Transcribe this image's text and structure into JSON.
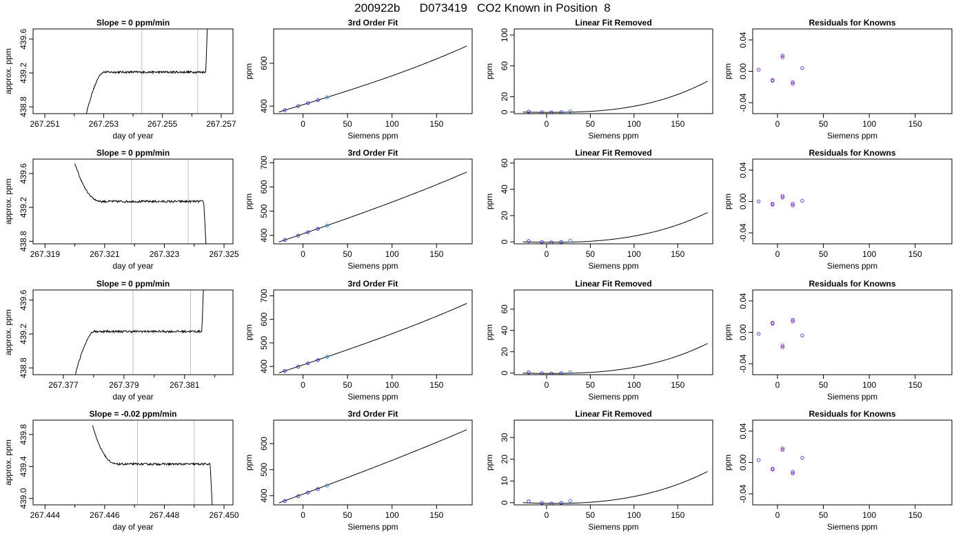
{
  "title": "200922b      D073419   CO2 Known in Position  8",
  "colors": {
    "trace": "#000000",
    "fit_curve": "#000000",
    "vertical_marker": "#bebebe",
    "point_outline": "#3333cc",
    "point_fill_alt": "#1e90ff",
    "highlight_point": "#ff8080",
    "residual_point": "#7a33cc"
  },
  "chart_data": [
    {
      "type": "line",
      "panel": "time-series-row-1",
      "title": "Slope =  0  ppm/min",
      "xlabel": "day of year",
      "ylabel": "approx. ppm",
      "xlim": [
        267.2506,
        267.2574
      ],
      "ylim": [
        438.72,
        439.72
      ],
      "xticks": [
        "267.251",
        "267.253",
        "267.255",
        "267.257"
      ],
      "xtick_values": [
        267.251,
        267.253,
        267.255,
        267.257
      ],
      "xminor": [
        267.252,
        267.254,
        267.256
      ],
      "yticks": [
        "438.8",
        "439.2",
        "439.6"
      ],
      "ytick_values": [
        438.8,
        439.2,
        439.6
      ],
      "vlines": [
        267.2543,
        267.2562
      ],
      "trace_profile": "rise-plateau-rise",
      "trace_start": 267.2524,
      "trace_end": 267.2566,
      "plateau": 439.21
    },
    {
      "type": "line",
      "panel": "time-series-row-2",
      "title": "Slope =  0  ppm/min",
      "xlabel": "day of year",
      "ylabel": "approx. ppm",
      "xlim": [
        267.3186,
        267.3253
      ],
      "ylim": [
        438.77,
        439.77
      ],
      "xticks": [
        "267.319",
        "267.321",
        "267.323",
        "267.325"
      ],
      "xtick_values": [
        267.319,
        267.321,
        267.323,
        267.325
      ],
      "xminor": [
        267.32,
        267.322,
        267.324
      ],
      "yticks": [
        "438.8",
        "439.2",
        "439.6"
      ],
      "ytick_values": [
        438.8,
        439.2,
        439.6
      ],
      "vlines": [
        267.3219,
        267.3238
      ],
      "trace_profile": "fall-plateau-fall",
      "trace_start": 267.32,
      "trace_end": 267.3245,
      "plateau": 439.27
    },
    {
      "type": "line",
      "panel": "time-series-row-3",
      "title": "Slope =  0  ppm/min",
      "xlabel": "day of year",
      "ylabel": "approx. ppm",
      "xlim": [
        267.376,
        267.3826
      ],
      "ylim": [
        438.72,
        439.72
      ],
      "xticks": [
        "267.377",
        "267.379",
        "267.381"
      ],
      "xtick_values": [
        267.377,
        267.379,
        267.381
      ],
      "xminor": [
        267.378,
        267.38,
        267.382
      ],
      "yticks": [
        "438.8",
        "439.2",
        "439.6"
      ],
      "ytick_values": [
        438.8,
        439.2,
        439.6
      ],
      "vlines": [
        267.3793,
        267.3812
      ],
      "trace_profile": "rise-plateau-rise",
      "trace_start": 267.3774,
      "trace_end": 267.3817,
      "plateau": 439.23
    },
    {
      "type": "line",
      "panel": "time-series-row-4",
      "title": "Slope =  -0.02  ppm/min",
      "xlabel": "day of year",
      "ylabel": "approx. ppm",
      "xlim": [
        267.4436,
        267.4503
      ],
      "ylim": [
        438.92,
        439.98
      ],
      "xticks": [
        "267.444",
        "267.446",
        "267.448",
        "267.450"
      ],
      "xtick_values": [
        267.444,
        267.446,
        267.448,
        267.45
      ],
      "xminor": [
        267.445,
        267.447,
        267.449
      ],
      "yticks": [
        "439.0",
        "439.4",
        "439.8"
      ],
      "ytick_values": [
        439.0,
        439.4,
        439.8
      ],
      "vlines": [
        267.4471,
        267.449
      ],
      "trace_profile": "fall-plateau-fall",
      "trace_start": 267.4456,
      "trace_end": 267.4497,
      "plateau": 439.43
    },
    {
      "type": "scatter",
      "panel": "fit-row-1",
      "title": "3rd Order Fit",
      "xlabel": "Siemens ppm",
      "ylabel": "ppm",
      "xlim": [
        -33,
        190
      ],
      "ylim": [
        365,
        760
      ],
      "xticks": [
        "0",
        "50",
        "100",
        "150"
      ],
      "xtick_values": [
        0,
        50,
        100,
        150
      ],
      "yticks": [
        "400",
        "600"
      ],
      "ytick_values": [
        400,
        600
      ],
      "x": [
        -20.5,
        -5.4,
        5.5,
        16.7,
        27
      ],
      "y": [
        381,
        400,
        414,
        428,
        441
      ],
      "curve": {
        "x0": -27,
        "x1": 184,
        "a": 4.55e-06,
        "b": 0.00038,
        "c": 1.264,
        "d": 406.8
      }
    },
    {
      "type": "scatter",
      "panel": "fit-row-2",
      "title": "3rd Order Fit",
      "xlabel": "Siemens ppm",
      "ylabel": "ppm",
      "xlim": [
        -33,
        190
      ],
      "ylim": [
        365,
        715
      ],
      "xticks": [
        "0",
        "50",
        "100",
        "150"
      ],
      "xtick_values": [
        0,
        50,
        100,
        150
      ],
      "yticks": [
        "400",
        "500",
        "600",
        "700"
      ],
      "ytick_values": [
        400,
        500,
        600,
        700
      ],
      "x": [
        -20.5,
        -5.4,
        5.5,
        16.7,
        27
      ],
      "y": [
        381,
        399,
        413,
        427,
        440
      ],
      "curve": {
        "x0": -27,
        "x1": 184,
        "a": 2.1e-06,
        "b": 0.00031,
        "c": 1.258,
        "d": 406.5
      }
    },
    {
      "type": "scatter",
      "panel": "fit-row-3",
      "title": "3rd Order Fit",
      "xlabel": "Siemens ppm",
      "ylabel": "ppm",
      "xlim": [
        -33,
        190
      ],
      "ylim": [
        365,
        725
      ],
      "xticks": [
        "0",
        "50",
        "100",
        "150"
      ],
      "xtick_values": [
        0,
        50,
        100,
        150
      ],
      "yticks": [
        "400",
        "500",
        "600",
        "700"
      ],
      "ytick_values": [
        400,
        500,
        600,
        700
      ],
      "x": [
        -20.5,
        -5.4,
        5.5,
        16.7,
        27
      ],
      "y": [
        381,
        399,
        413,
        427,
        441
      ],
      "curve": {
        "x0": -27,
        "x1": 184,
        "a": 2.8e-06,
        "b": 0.00034,
        "c": 1.262,
        "d": 406.7
      }
    },
    {
      "type": "scatter",
      "panel": "fit-row-4",
      "title": "3rd Order Fit",
      "xlabel": "Siemens ppm",
      "ylabel": "ppm",
      "xlim": [
        -33,
        190
      ],
      "ylim": [
        365,
        690
      ],
      "xticks": [
        "0",
        "50",
        "100",
        "150"
      ],
      "xtick_values": [
        0,
        50,
        100,
        150
      ],
      "yticks": [
        "400",
        "500",
        "600"
      ],
      "ytick_values": [
        400,
        500,
        600
      ],
      "x": [
        -20.5,
        -5.4,
        5.5,
        16.7,
        27
      ],
      "y": [
        380,
        398,
        412,
        426,
        439
      ],
      "curve": {
        "x0": -27,
        "x1": 184,
        "a": 1.1e-06,
        "b": 0.00026,
        "c": 1.258,
        "d": 406.3
      }
    },
    {
      "type": "scatter",
      "panel": "linear-removed-row-1",
      "title": "Linear Fit Removed",
      "xlabel": "Siemens ppm",
      "ylabel": "ppm",
      "xlim": [
        -37,
        190
      ],
      "ylim": [
        -2,
        108
      ],
      "xticks": [
        "0",
        "50",
        "100",
        "150"
      ],
      "xtick_values": [
        0,
        50,
        100,
        150
      ],
      "yticks": [
        "0",
        "20",
        "60",
        "100"
      ],
      "ytick_values": [
        0,
        20,
        60,
        100
      ],
      "x": [
        -20.5,
        -5.4,
        5.5,
        16.7,
        27
      ],
      "y": [
        0.6,
        -0.1,
        -0.4,
        -0.1,
        0.8
      ],
      "curve": {
        "x0": -27,
        "x1": 184,
        "a": 4.55e-06,
        "b": 0.00038,
        "c": -0.0042,
        "d": -0.33
      }
    },
    {
      "type": "scatter",
      "panel": "linear-removed-row-2",
      "title": "Linear Fit Removed",
      "xlabel": "Siemens ppm",
      "ylabel": "ppm",
      "xlim": [
        -37,
        190
      ],
      "ylim": [
        -1.5,
        63
      ],
      "xticks": [
        "0",
        "50",
        "100",
        "150"
      ],
      "xtick_values": [
        0,
        50,
        100,
        150
      ],
      "yticks": [
        "0",
        "20",
        "40",
        "60"
      ],
      "ytick_values": [
        0,
        20,
        40,
        60
      ],
      "x": [
        -20.5,
        -5.4,
        5.5,
        16.7,
        27
      ],
      "y": [
        0.6,
        -0.1,
        -0.4,
        -0.1,
        0.8
      ],
      "curve": {
        "x0": -27,
        "x1": 184,
        "a": 2.1e-06,
        "b": 0.00031,
        "c": -0.0052,
        "d": -0.32
      }
    },
    {
      "type": "scatter",
      "panel": "linear-removed-row-3",
      "title": "Linear Fit Removed",
      "xlabel": "Siemens ppm",
      "ylabel": "ppm",
      "xlim": [
        -37,
        190
      ],
      "ylim": [
        -1.5,
        78
      ],
      "xticks": [
        "0",
        "50",
        "100",
        "150"
      ],
      "xtick_values": [
        0,
        50,
        100,
        150
      ],
      "yticks": [
        "0",
        "20",
        "40",
        "60"
      ],
      "ytick_values": [
        0,
        20,
        40,
        60
      ],
      "x": [
        -20.5,
        -5.4,
        5.5,
        16.7,
        27
      ],
      "y": [
        0.6,
        -0.1,
        -0.4,
        -0.1,
        0.8
      ],
      "curve": {
        "x0": -27,
        "x1": 184,
        "a": 2.8e-06,
        "b": 0.00034,
        "c": -0.0046,
        "d": -0.33
      }
    },
    {
      "type": "scatter",
      "panel": "linear-removed-row-4",
      "title": "Linear Fit Removed",
      "xlabel": "Siemens ppm",
      "ylabel": "ppm",
      "xlim": [
        -37,
        190
      ],
      "ylim": [
        -1,
        38
      ],
      "xticks": [
        "0",
        "50",
        "100",
        "150"
      ],
      "xtick_values": [
        0,
        50,
        100,
        150
      ],
      "yticks": [
        "0",
        "10",
        "20",
        "30"
      ],
      "ytick_values": [
        0,
        10,
        20,
        30
      ],
      "x": [
        -20.5,
        -5.4,
        5.5,
        16.7,
        27
      ],
      "y": [
        0.6,
        -0.1,
        -0.4,
        -0.1,
        0.8
      ],
      "curve": {
        "x0": -27,
        "x1": 184,
        "a": 1.1e-06,
        "b": 0.00026,
        "c": -0.0055,
        "d": -0.31
      }
    },
    {
      "type": "scatter",
      "panel": "residuals-row-1",
      "title": "Residuals for Knowns",
      "xlabel": "Siemens ppm",
      "ylabel": "ppm",
      "xlim": [
        -27,
        190
      ],
      "ylim": [
        -0.054,
        0.054
      ],
      "xticks": [
        "0",
        "50",
        "100",
        "150"
      ],
      "xtick_values": [
        0,
        50,
        100,
        150
      ],
      "yticks": [
        "-0.04",
        "0.00",
        "0.04"
      ],
      "ytick_values": [
        -0.04,
        0.0,
        0.04
      ],
      "x": [
        -20.5,
        -5.4,
        -5.4,
        5.5,
        5.5,
        16.7,
        16.7,
        27
      ],
      "y": [
        0.002,
        -0.011,
        -0.012,
        0.02,
        0.018,
        -0.014,
        -0.016,
        0.004
      ]
    },
    {
      "type": "scatter",
      "panel": "residuals-row-2",
      "title": "Residuals for Knowns",
      "xlabel": "Siemens ppm",
      "ylabel": "ppm",
      "xlim": [
        -27,
        190
      ],
      "ylim": [
        -0.054,
        0.054
      ],
      "xticks": [
        "0",
        "50",
        "100",
        "150"
      ],
      "xtick_values": [
        0,
        50,
        100,
        150
      ],
      "yticks": [
        "-0.04",
        "0.00",
        "0.04"
      ],
      "ytick_values": [
        -0.04,
        0.0,
        0.04
      ],
      "x": [
        -20.5,
        -5.4,
        -5.4,
        5.5,
        5.5,
        16.7,
        16.7,
        27
      ],
      "y": [
        0.0,
        -0.003,
        -0.004,
        0.007,
        0.005,
        -0.003,
        -0.005,
        0.001
      ]
    },
    {
      "type": "scatter",
      "panel": "residuals-row-3",
      "title": "Residuals for Knowns",
      "xlabel": "Siemens ppm",
      "ylabel": "ppm",
      "xlim": [
        -27,
        190
      ],
      "ylim": [
        -0.054,
        0.054
      ],
      "xticks": [
        "0",
        "50",
        "100",
        "150"
      ],
      "xtick_values": [
        0,
        50,
        100,
        150
      ],
      "yticks": [
        "-0.04",
        "0.00",
        "0.04"
      ],
      "ytick_values": [
        -0.04,
        0.0,
        0.04
      ],
      "x": [
        -20.5,
        -5.4,
        -5.4,
        5.5,
        5.5,
        16.7,
        16.7,
        27
      ],
      "y": [
        -0.002,
        0.012,
        0.011,
        -0.017,
        -0.019,
        0.016,
        0.014,
        -0.004
      ]
    },
    {
      "type": "scatter",
      "panel": "residuals-row-4",
      "title": "Residuals for Knowns",
      "xlabel": "Siemens ppm",
      "ylabel": "ppm",
      "xlim": [
        -27,
        190
      ],
      "ylim": [
        -0.054,
        0.054
      ],
      "xticks": [
        "0",
        "50",
        "100",
        "150"
      ],
      "xtick_values": [
        0,
        50,
        100,
        150
      ],
      "yticks": [
        "-0.04",
        "0.00",
        "0.04"
      ],
      "ytick_values": [
        -0.04,
        0.0,
        0.04
      ],
      "x": [
        -20.5,
        -5.4,
        -5.4,
        5.5,
        5.5,
        16.7,
        16.7,
        27
      ],
      "y": [
        0.003,
        -0.008,
        -0.009,
        0.018,
        0.016,
        -0.012,
        -0.014,
        0.006
      ]
    }
  ]
}
